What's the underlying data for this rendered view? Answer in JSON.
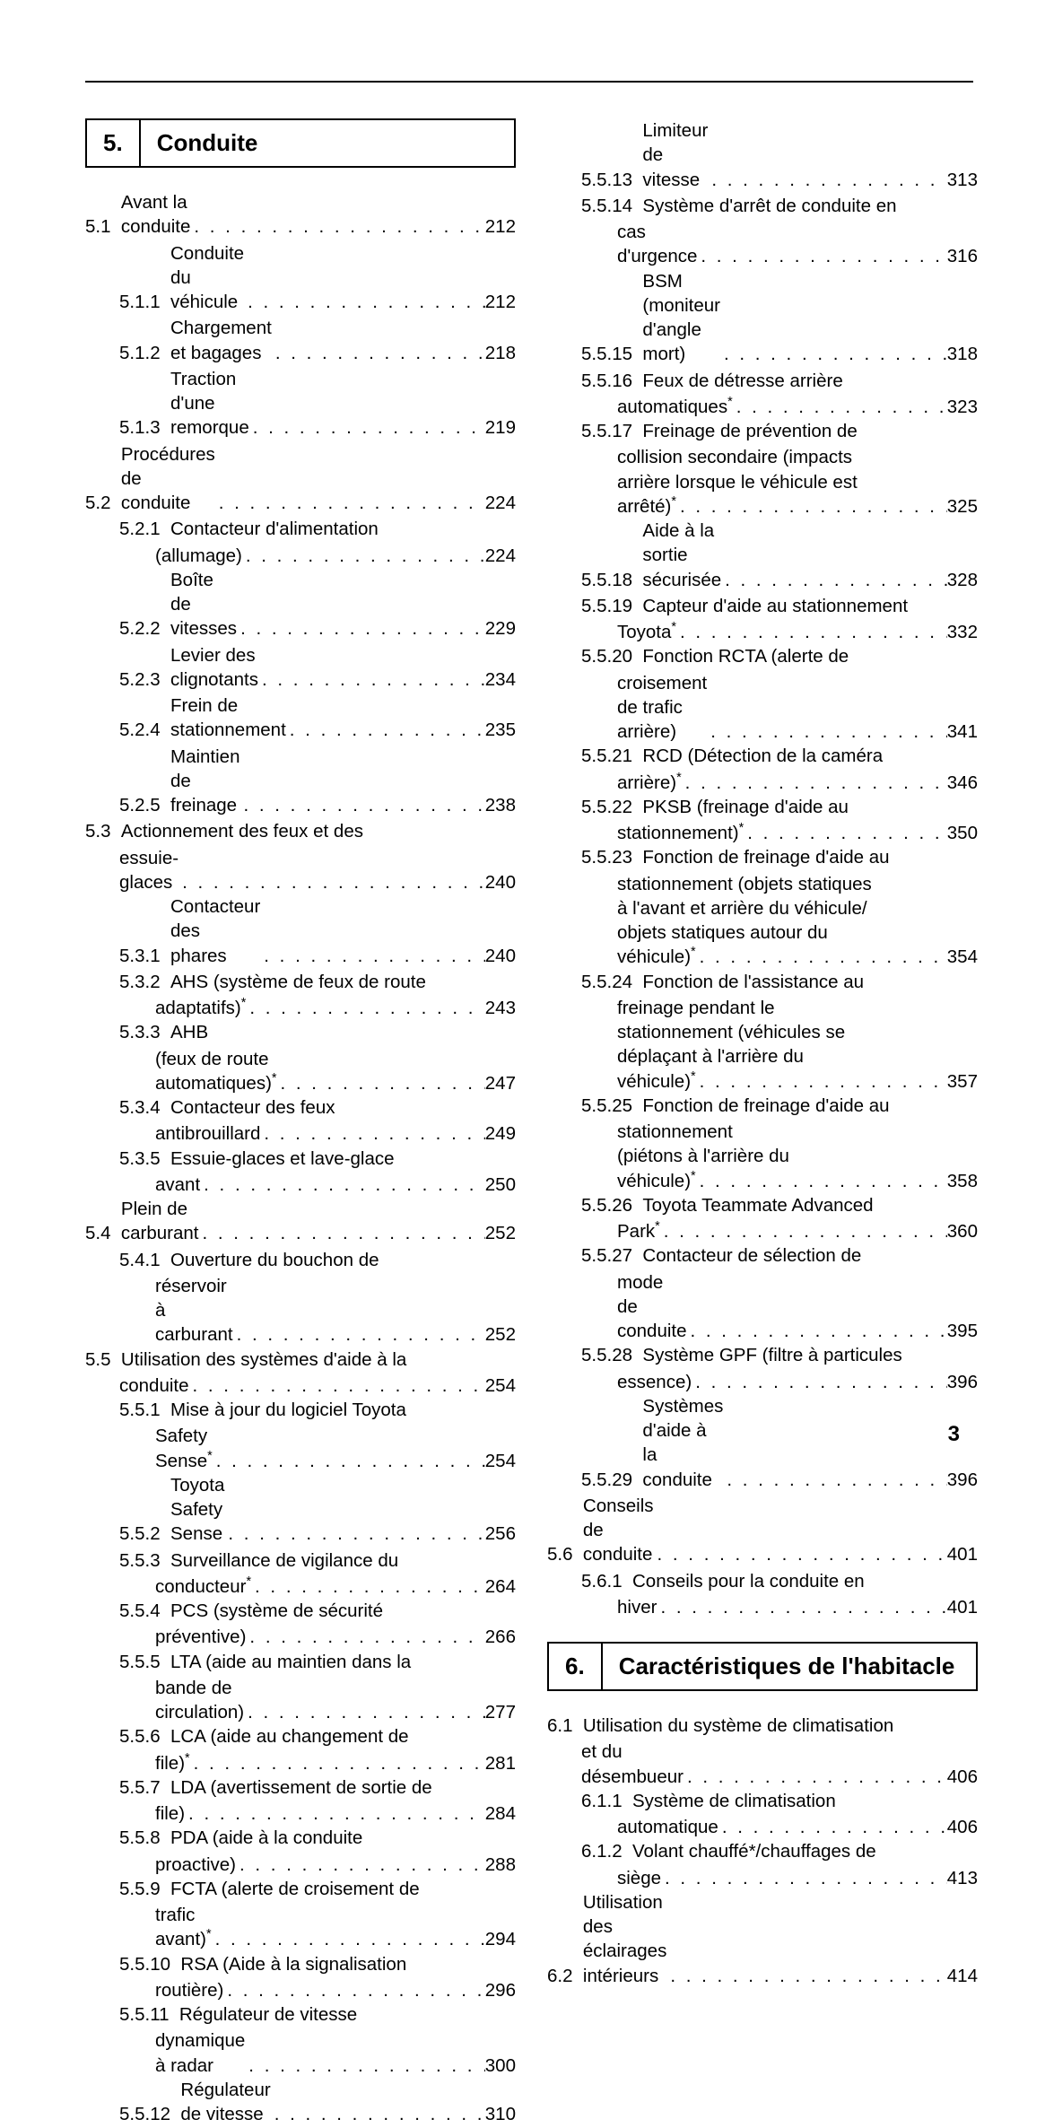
{
  "page_number": "3",
  "dot": ".",
  "left_col": {
    "chapter": {
      "num": "5.",
      "title": "Conduite"
    },
    "entries": [
      {
        "lvl": 1,
        "num": "5.1",
        "lines": [
          "Avant la conduite"
        ],
        "page": "212"
      },
      {
        "lvl": 2,
        "num": "5.1.1",
        "lines": [
          "Conduite du véhicule"
        ],
        "page": "212"
      },
      {
        "lvl": 2,
        "num": "5.1.2",
        "lines": [
          "Chargement et bagages"
        ],
        "page": "218"
      },
      {
        "lvl": 2,
        "num": "5.1.3",
        "lines": [
          "Traction d'une remorque"
        ],
        "page": "219"
      },
      {
        "lvl": 1,
        "num": "5.2",
        "lines": [
          "Procédures de conduite"
        ],
        "page": "224"
      },
      {
        "lvl": 2,
        "num": "5.2.1",
        "lines": [
          "Contacteur d'alimentation",
          "(allumage)"
        ],
        "page": "224"
      },
      {
        "lvl": 2,
        "num": "5.2.2",
        "lines": [
          "Boîte de vitesses"
        ],
        "page": "229"
      },
      {
        "lvl": 2,
        "num": "5.2.3",
        "lines": [
          "Levier des clignotants"
        ],
        "page": "234"
      },
      {
        "lvl": 2,
        "num": "5.2.4",
        "lines": [
          "Frein de stationnement"
        ],
        "page": "235"
      },
      {
        "lvl": 2,
        "num": "5.2.5",
        "lines": [
          "Maintien de freinage"
        ],
        "page": "238"
      },
      {
        "lvl": 1,
        "num": "5.3",
        "lines": [
          "Actionnement des feux et des",
          "essuie-glaces"
        ],
        "page": "240"
      },
      {
        "lvl": 2,
        "num": "5.3.1",
        "lines": [
          "Contacteur des phares"
        ],
        "page": "240"
      },
      {
        "lvl": 2,
        "num": "5.3.2",
        "lines": [
          "AHS (système de feux de route",
          "adaptatifs)"
        ],
        "star": true,
        "page": "243"
      },
      {
        "lvl": 2,
        "num": "5.3.3",
        "lines": [
          "AHB",
          "(feux de route automatiques)"
        ],
        "star": true,
        "page": "247"
      },
      {
        "lvl": 2,
        "num": "5.3.4",
        "lines": [
          "Contacteur des feux",
          "antibrouillard"
        ],
        "page": "249"
      },
      {
        "lvl": 2,
        "num": "5.3.5",
        "lines": [
          "Essuie-glaces et lave-glace",
          "avant"
        ],
        "page": "250"
      },
      {
        "lvl": 1,
        "num": "5.4",
        "lines": [
          "Plein de carburant"
        ],
        "page": "252"
      },
      {
        "lvl": 2,
        "num": "5.4.1",
        "lines": [
          "Ouverture du bouchon de",
          "réservoir à carburant"
        ],
        "page": "252"
      },
      {
        "lvl": 1,
        "num": "5.5",
        "lines": [
          "Utilisation des systèmes d'aide à la",
          "conduite"
        ],
        "page": "254"
      },
      {
        "lvl": 2,
        "num": "5.5.1",
        "lines": [
          "Mise à jour du logiciel Toyota",
          "Safety Sense"
        ],
        "star": true,
        "page": "254"
      },
      {
        "lvl": 2,
        "num": "5.5.2",
        "lines": [
          "Toyota Safety Sense"
        ],
        "page": "256"
      },
      {
        "lvl": 2,
        "num": "5.5.3",
        "lines": [
          "Surveillance de vigilance du",
          "conducteur"
        ],
        "star": true,
        "page": "264"
      },
      {
        "lvl": 2,
        "num": "5.5.4",
        "lines": [
          "PCS (système de sécurité",
          "préventive)"
        ],
        "page": "266"
      },
      {
        "lvl": 2,
        "num": "5.5.5",
        "lines": [
          "LTA (aide au maintien dans la",
          "bande de circulation)"
        ],
        "page": "277"
      },
      {
        "lvl": 2,
        "num": "5.5.6",
        "lines": [
          "LCA (aide au changement de",
          "file)"
        ],
        "star": true,
        "page": "281"
      },
      {
        "lvl": 2,
        "num": "5.5.7",
        "lines": [
          "LDA (avertissement de sortie de",
          "file)"
        ],
        "page": "284"
      },
      {
        "lvl": 2,
        "num": "5.5.8",
        "lines": [
          "PDA (aide à la conduite",
          "proactive)"
        ],
        "page": "288"
      },
      {
        "lvl": 2,
        "num": "5.5.9",
        "lines": [
          "FCTA (alerte de croisement de",
          "trafic avant)"
        ],
        "star": true,
        "page": "294"
      },
      {
        "lvl": 2,
        "num": "5.5.10",
        "lines": [
          "RSA (Aide à la signalisation",
          "routière)"
        ],
        "page": "296"
      },
      {
        "lvl": 2,
        "num": "5.5.11",
        "lines": [
          "Régulateur de vitesse",
          "dynamique à radar"
        ],
        "page": "300"
      },
      {
        "lvl": 2,
        "num": "5.5.12",
        "lines": [
          "Régulateur de vitesse"
        ],
        "page": "310"
      }
    ]
  },
  "right_col": {
    "top_entries": [
      {
        "lvl": 2,
        "num": "5.5.13",
        "lines": [
          "Limiteur de vitesse"
        ],
        "page": "313"
      },
      {
        "lvl": 2,
        "num": "5.5.14",
        "lines": [
          "Système d'arrêt de conduite en",
          "cas d'urgence"
        ],
        "page": "316"
      },
      {
        "lvl": 2,
        "num": "5.5.15",
        "lines": [
          "BSM (moniteur d'angle mort)"
        ],
        "page": "318"
      },
      {
        "lvl": 2,
        "num": "5.5.16",
        "lines": [
          "Feux de détresse arrière",
          "automatiques"
        ],
        "star": true,
        "page": "323"
      },
      {
        "lvl": 2,
        "num": "5.5.17",
        "lines": [
          "Freinage de prévention de",
          "collision secondaire (impacts",
          "arrière lorsque le véhicule est",
          "arrêté)"
        ],
        "star": true,
        "page": "325"
      },
      {
        "lvl": 2,
        "num": "5.5.18",
        "lines": [
          "Aide à la sortie sécurisée"
        ],
        "page": "328"
      },
      {
        "lvl": 2,
        "num": "5.5.19",
        "lines": [
          "Capteur d'aide au stationnement",
          "Toyota"
        ],
        "star": true,
        "page": "332"
      },
      {
        "lvl": 2,
        "num": "5.5.20",
        "lines": [
          "Fonction RCTA (alerte de",
          "croisement de trafic arrière)"
        ],
        "page": "341"
      },
      {
        "lvl": 2,
        "num": "5.5.21",
        "lines": [
          "RCD (Détection de la caméra",
          "arrière)"
        ],
        "star": true,
        "page": "346"
      },
      {
        "lvl": 2,
        "num": "5.5.22",
        "lines": [
          "PKSB (freinage d'aide au",
          "stationnement)"
        ],
        "star": true,
        "page": "350"
      },
      {
        "lvl": 2,
        "num": "5.5.23",
        "lines": [
          "Fonction de freinage d'aide au",
          "stationnement (objets statiques",
          "à l'avant et arrière du véhicule/",
          "objets statiques autour du",
          "véhicule)"
        ],
        "star": true,
        "page": "354"
      },
      {
        "lvl": 2,
        "num": "5.5.24",
        "lines": [
          "Fonction de l'assistance au",
          "freinage pendant le",
          "stationnement (véhicules se",
          "déplaçant à l'arrière du",
          "véhicule)"
        ],
        "star": true,
        "page": "357"
      },
      {
        "lvl": 2,
        "num": "5.5.25",
        "lines": [
          "Fonction de freinage d'aide au",
          "stationnement",
          "(piétons à l'arrière du",
          "véhicule)"
        ],
        "star": true,
        "page": "358"
      },
      {
        "lvl": 2,
        "num": "5.5.26",
        "lines": [
          "Toyota Teammate Advanced",
          "Park"
        ],
        "star": true,
        "page": "360"
      },
      {
        "lvl": 2,
        "num": "5.5.27",
        "lines": [
          "Contacteur de sélection de",
          "mode de conduite"
        ],
        "page": "395"
      },
      {
        "lvl": 2,
        "num": "5.5.28",
        "lines": [
          "Système GPF (filtre à particules",
          "essence)"
        ],
        "page": "396"
      },
      {
        "lvl": 2,
        "num": "5.5.29",
        "lines": [
          "Systèmes d'aide à la conduite"
        ],
        "page": "396"
      },
      {
        "lvl": 1,
        "num": "5.6",
        "lines": [
          "Conseils de conduite"
        ],
        "page": "401"
      },
      {
        "lvl": 2,
        "num": "5.6.1",
        "lines": [
          "Conseils pour la conduite en",
          "hiver"
        ],
        "page": "401"
      }
    ],
    "chapter": {
      "num": "6.",
      "title": "Caractéristiques de l'habitacle"
    },
    "bottom_entries": [
      {
        "lvl": 1,
        "num": "6.1",
        "lines": [
          "Utilisation du système de climatisation",
          "et du désembueur"
        ],
        "page": "406"
      },
      {
        "lvl": 2,
        "num": "6.1.1",
        "lines": [
          "Système de climatisation",
          "automatique"
        ],
        "page": "406"
      },
      {
        "lvl": 2,
        "num": "6.1.2",
        "lines": [
          "Volant chauffé*/chauffages de",
          "siège"
        ],
        "page": "413",
        "noStar": true
      },
      {
        "lvl": 1,
        "num": "6.2",
        "lines": [
          "Utilisation des éclairages intérieurs"
        ],
        "page": "414"
      }
    ]
  }
}
